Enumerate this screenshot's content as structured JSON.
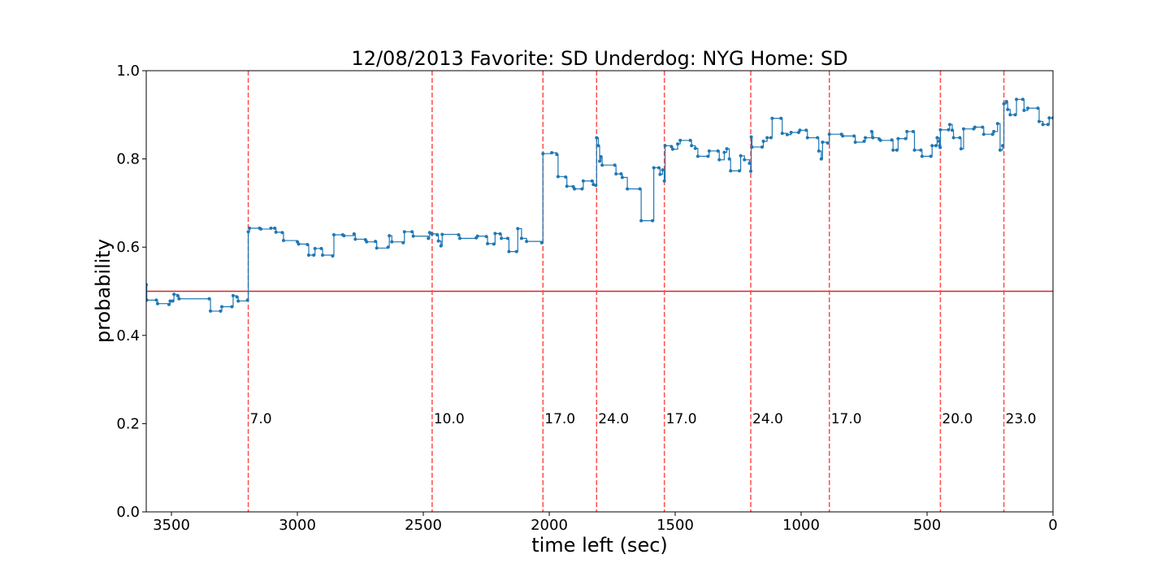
{
  "chart_data": {
    "type": "line",
    "title": "12/08/2013 Favorite: SD Underdog: NYG Home: SD",
    "xlabel": "time left (sec)",
    "ylabel": "probability",
    "xlim": [
      3600,
      0
    ],
    "ylim": [
      0.0,
      1.0
    ],
    "x_ticks": [
      3500,
      3000,
      2500,
      2000,
      1500,
      1000,
      500,
      0
    ],
    "x_tick_labels": [
      "3500",
      "3000",
      "2500",
      "2000",
      "1500",
      "1000",
      "500",
      "0"
    ],
    "y_ticks": [
      0.0,
      0.2,
      0.4,
      0.6,
      0.8,
      1.0
    ],
    "y_tick_labels": [
      "0.0",
      "0.2",
      "0.4",
      "0.6",
      "0.8",
      "1.0"
    ],
    "grid": false,
    "colors": {
      "series": "#1f77b4",
      "reference_line": "#d62728",
      "score_lines": "#ff4d4d"
    },
    "reference_line": {
      "y": 0.5
    },
    "score_events": [
      {
        "x": 3195,
        "label": "7.0"
      },
      {
        "x": 2465,
        "label": "10.0"
      },
      {
        "x": 2025,
        "label": "17.0"
      },
      {
        "x": 1812,
        "label": "24.0"
      },
      {
        "x": 1543,
        "label": "17.0"
      },
      {
        "x": 1200,
        "label": "24.0"
      },
      {
        "x": 888,
        "label": "17.0"
      },
      {
        "x": 447,
        "label": "20.0"
      },
      {
        "x": 195,
        "label": "23.0"
      }
    ],
    "series": [
      {
        "points": [
          [
            3600,
            0.515
          ],
          [
            3598,
            0.48
          ],
          [
            3560,
            0.48
          ],
          [
            3555,
            0.472
          ],
          [
            3510,
            0.47
          ],
          [
            3505,
            0.478
          ],
          [
            3495,
            0.478
          ],
          [
            3490,
            0.493
          ],
          [
            3475,
            0.49
          ],
          [
            3470,
            0.483
          ],
          [
            3350,
            0.483
          ],
          [
            3345,
            0.455
          ],
          [
            3305,
            0.455
          ],
          [
            3300,
            0.465
          ],
          [
            3260,
            0.465
          ],
          [
            3255,
            0.49
          ],
          [
            3240,
            0.487
          ],
          [
            3235,
            0.478
          ],
          [
            3198,
            0.48
          ],
          [
            3195,
            0.635
          ],
          [
            3190,
            0.643
          ],
          [
            3150,
            0.643
          ],
          [
            3145,
            0.641
          ],
          [
            3105,
            0.643
          ],
          [
            3090,
            0.643
          ],
          [
            3085,
            0.634
          ],
          [
            3060,
            0.633
          ],
          [
            3055,
            0.615
          ],
          [
            3000,
            0.612
          ],
          [
            2995,
            0.607
          ],
          [
            2960,
            0.606
          ],
          [
            2955,
            0.582
          ],
          [
            2935,
            0.582
          ],
          [
            2930,
            0.597
          ],
          [
            2905,
            0.597
          ],
          [
            2900,
            0.582
          ],
          [
            2860,
            0.58
          ],
          [
            2855,
            0.628
          ],
          [
            2820,
            0.628
          ],
          [
            2815,
            0.626
          ],
          [
            2775,
            0.63
          ],
          [
            2770,
            0.618
          ],
          [
            2730,
            0.617
          ],
          [
            2725,
            0.612
          ],
          [
            2690,
            0.613
          ],
          [
            2685,
            0.598
          ],
          [
            2640,
            0.6
          ],
          [
            2635,
            0.626
          ],
          [
            2625,
            0.612
          ],
          [
            2580,
            0.61
          ],
          [
            2575,
            0.635
          ],
          [
            2545,
            0.635
          ],
          [
            2540,
            0.625
          ],
          [
            2480,
            0.62
          ],
          [
            2475,
            0.633
          ],
          [
            2466,
            0.63
          ],
          [
            2465,
            0.63
          ],
          [
            2445,
            0.628
          ],
          [
            2440,
            0.614
          ],
          [
            2430,
            0.603
          ],
          [
            2425,
            0.629
          ],
          [
            2360,
            0.628
          ],
          [
            2355,
            0.62
          ],
          [
            2290,
            0.621
          ],
          [
            2285,
            0.625
          ],
          [
            2250,
            0.624
          ],
          [
            2245,
            0.608
          ],
          [
            2220,
            0.607
          ],
          [
            2215,
            0.631
          ],
          [
            2195,
            0.63
          ],
          [
            2190,
            0.62
          ],
          [
            2165,
            0.62
          ],
          [
            2160,
            0.59
          ],
          [
            2130,
            0.59
          ],
          [
            2125,
            0.642
          ],
          [
            2110,
            0.62
          ],
          [
            2090,
            0.613
          ],
          [
            2030,
            0.61
          ],
          [
            2025,
            0.812
          ],
          [
            1990,
            0.814
          ],
          [
            1970,
            0.81
          ],
          [
            1965,
            0.76
          ],
          [
            1935,
            0.759
          ],
          [
            1930,
            0.738
          ],
          [
            1905,
            0.737
          ],
          [
            1900,
            0.732
          ],
          [
            1870,
            0.732
          ],
          [
            1865,
            0.75
          ],
          [
            1830,
            0.75
          ],
          [
            1825,
            0.742
          ],
          [
            1815,
            0.74
          ],
          [
            1812,
            0.848
          ],
          [
            1805,
            0.83
          ],
          [
            1800,
            0.795
          ],
          [
            1795,
            0.805
          ],
          [
            1790,
            0.786
          ],
          [
            1740,
            0.786
          ],
          [
            1735,
            0.766
          ],
          [
            1715,
            0.766
          ],
          [
            1710,
            0.758
          ],
          [
            1690,
            0.732
          ],
          [
            1640,
            0.732
          ],
          [
            1635,
            0.66
          ],
          [
            1590,
            0.66
          ],
          [
            1585,
            0.78
          ],
          [
            1565,
            0.78
          ],
          [
            1560,
            0.765
          ],
          [
            1550,
            0.775
          ],
          [
            1543,
            0.75
          ],
          [
            1540,
            0.83
          ],
          [
            1515,
            0.828
          ],
          [
            1510,
            0.822
          ],
          [
            1490,
            0.834
          ],
          [
            1480,
            0.842
          ],
          [
            1440,
            0.842
          ],
          [
            1435,
            0.83
          ],
          [
            1420,
            0.824
          ],
          [
            1410,
            0.806
          ],
          [
            1370,
            0.806
          ],
          [
            1365,
            0.818
          ],
          [
            1330,
            0.818
          ],
          [
            1325,
            0.798
          ],
          [
            1305,
            0.815
          ],
          [
            1295,
            0.823
          ],
          [
            1285,
            0.8
          ],
          [
            1280,
            0.773
          ],
          [
            1245,
            0.773
          ],
          [
            1240,
            0.807
          ],
          [
            1225,
            0.798
          ],
          [
            1205,
            0.79
          ],
          [
            1200,
            0.772
          ],
          [
            1198,
            0.85
          ],
          [
            1195,
            0.827
          ],
          [
            1155,
            0.827
          ],
          [
            1150,
            0.84
          ],
          [
            1135,
            0.848
          ],
          [
            1120,
            0.848
          ],
          [
            1115,
            0.892
          ],
          [
            1080,
            0.892
          ],
          [
            1075,
            0.858
          ],
          [
            1055,
            0.855
          ],
          [
            1040,
            0.86
          ],
          [
            1010,
            0.86
          ],
          [
            1005,
            0.865
          ],
          [
            980,
            0.865
          ],
          [
            975,
            0.848
          ],
          [
            935,
            0.848
          ],
          [
            930,
            0.818
          ],
          [
            920,
            0.8
          ],
          [
            915,
            0.838
          ],
          [
            895,
            0.836
          ],
          [
            888,
            0.856
          ],
          [
            840,
            0.856
          ],
          [
            835,
            0.852
          ],
          [
            790,
            0.852
          ],
          [
            785,
            0.838
          ],
          [
            750,
            0.84
          ],
          [
            745,
            0.848
          ],
          [
            720,
            0.862
          ],
          [
            715,
            0.848
          ],
          [
            690,
            0.845
          ],
          [
            685,
            0.842
          ],
          [
            640,
            0.843
          ],
          [
            635,
            0.82
          ],
          [
            620,
            0.82
          ],
          [
            615,
            0.846
          ],
          [
            585,
            0.846
          ],
          [
            580,
            0.862
          ],
          [
            555,
            0.862
          ],
          [
            550,
            0.82
          ],
          [
            525,
            0.82
          ],
          [
            520,
            0.806
          ],
          [
            485,
            0.806
          ],
          [
            480,
            0.83
          ],
          [
            465,
            0.83
          ],
          [
            460,
            0.848
          ],
          [
            452,
            0.84
          ],
          [
            450,
            0.83
          ],
          [
            448,
            0.826
          ],
          [
            447,
            0.866
          ],
          [
            415,
            0.866
          ],
          [
            410,
            0.878
          ],
          [
            400,
            0.865
          ],
          [
            395,
            0.848
          ],
          [
            370,
            0.848
          ],
          [
            365,
            0.823
          ],
          [
            355,
            0.868
          ],
          [
            315,
            0.868
          ],
          [
            310,
            0.872
          ],
          [
            280,
            0.872
          ],
          [
            275,
            0.856
          ],
          [
            240,
            0.856
          ],
          [
            235,
            0.862
          ],
          [
            220,
            0.88
          ],
          [
            210,
            0.82
          ],
          [
            200,
            0.83
          ],
          [
            195,
            0.925
          ],
          [
            185,
            0.93
          ],
          [
            180,
            0.912
          ],
          [
            170,
            0.9
          ],
          [
            150,
            0.9
          ],
          [
            145,
            0.935
          ],
          [
            120,
            0.935
          ],
          [
            115,
            0.91
          ],
          [
            100,
            0.915
          ],
          [
            60,
            0.915
          ],
          [
            55,
            0.885
          ],
          [
            40,
            0.878
          ],
          [
            20,
            0.878
          ],
          [
            15,
            0.893
          ],
          [
            0,
            0.893
          ]
        ]
      }
    ]
  }
}
